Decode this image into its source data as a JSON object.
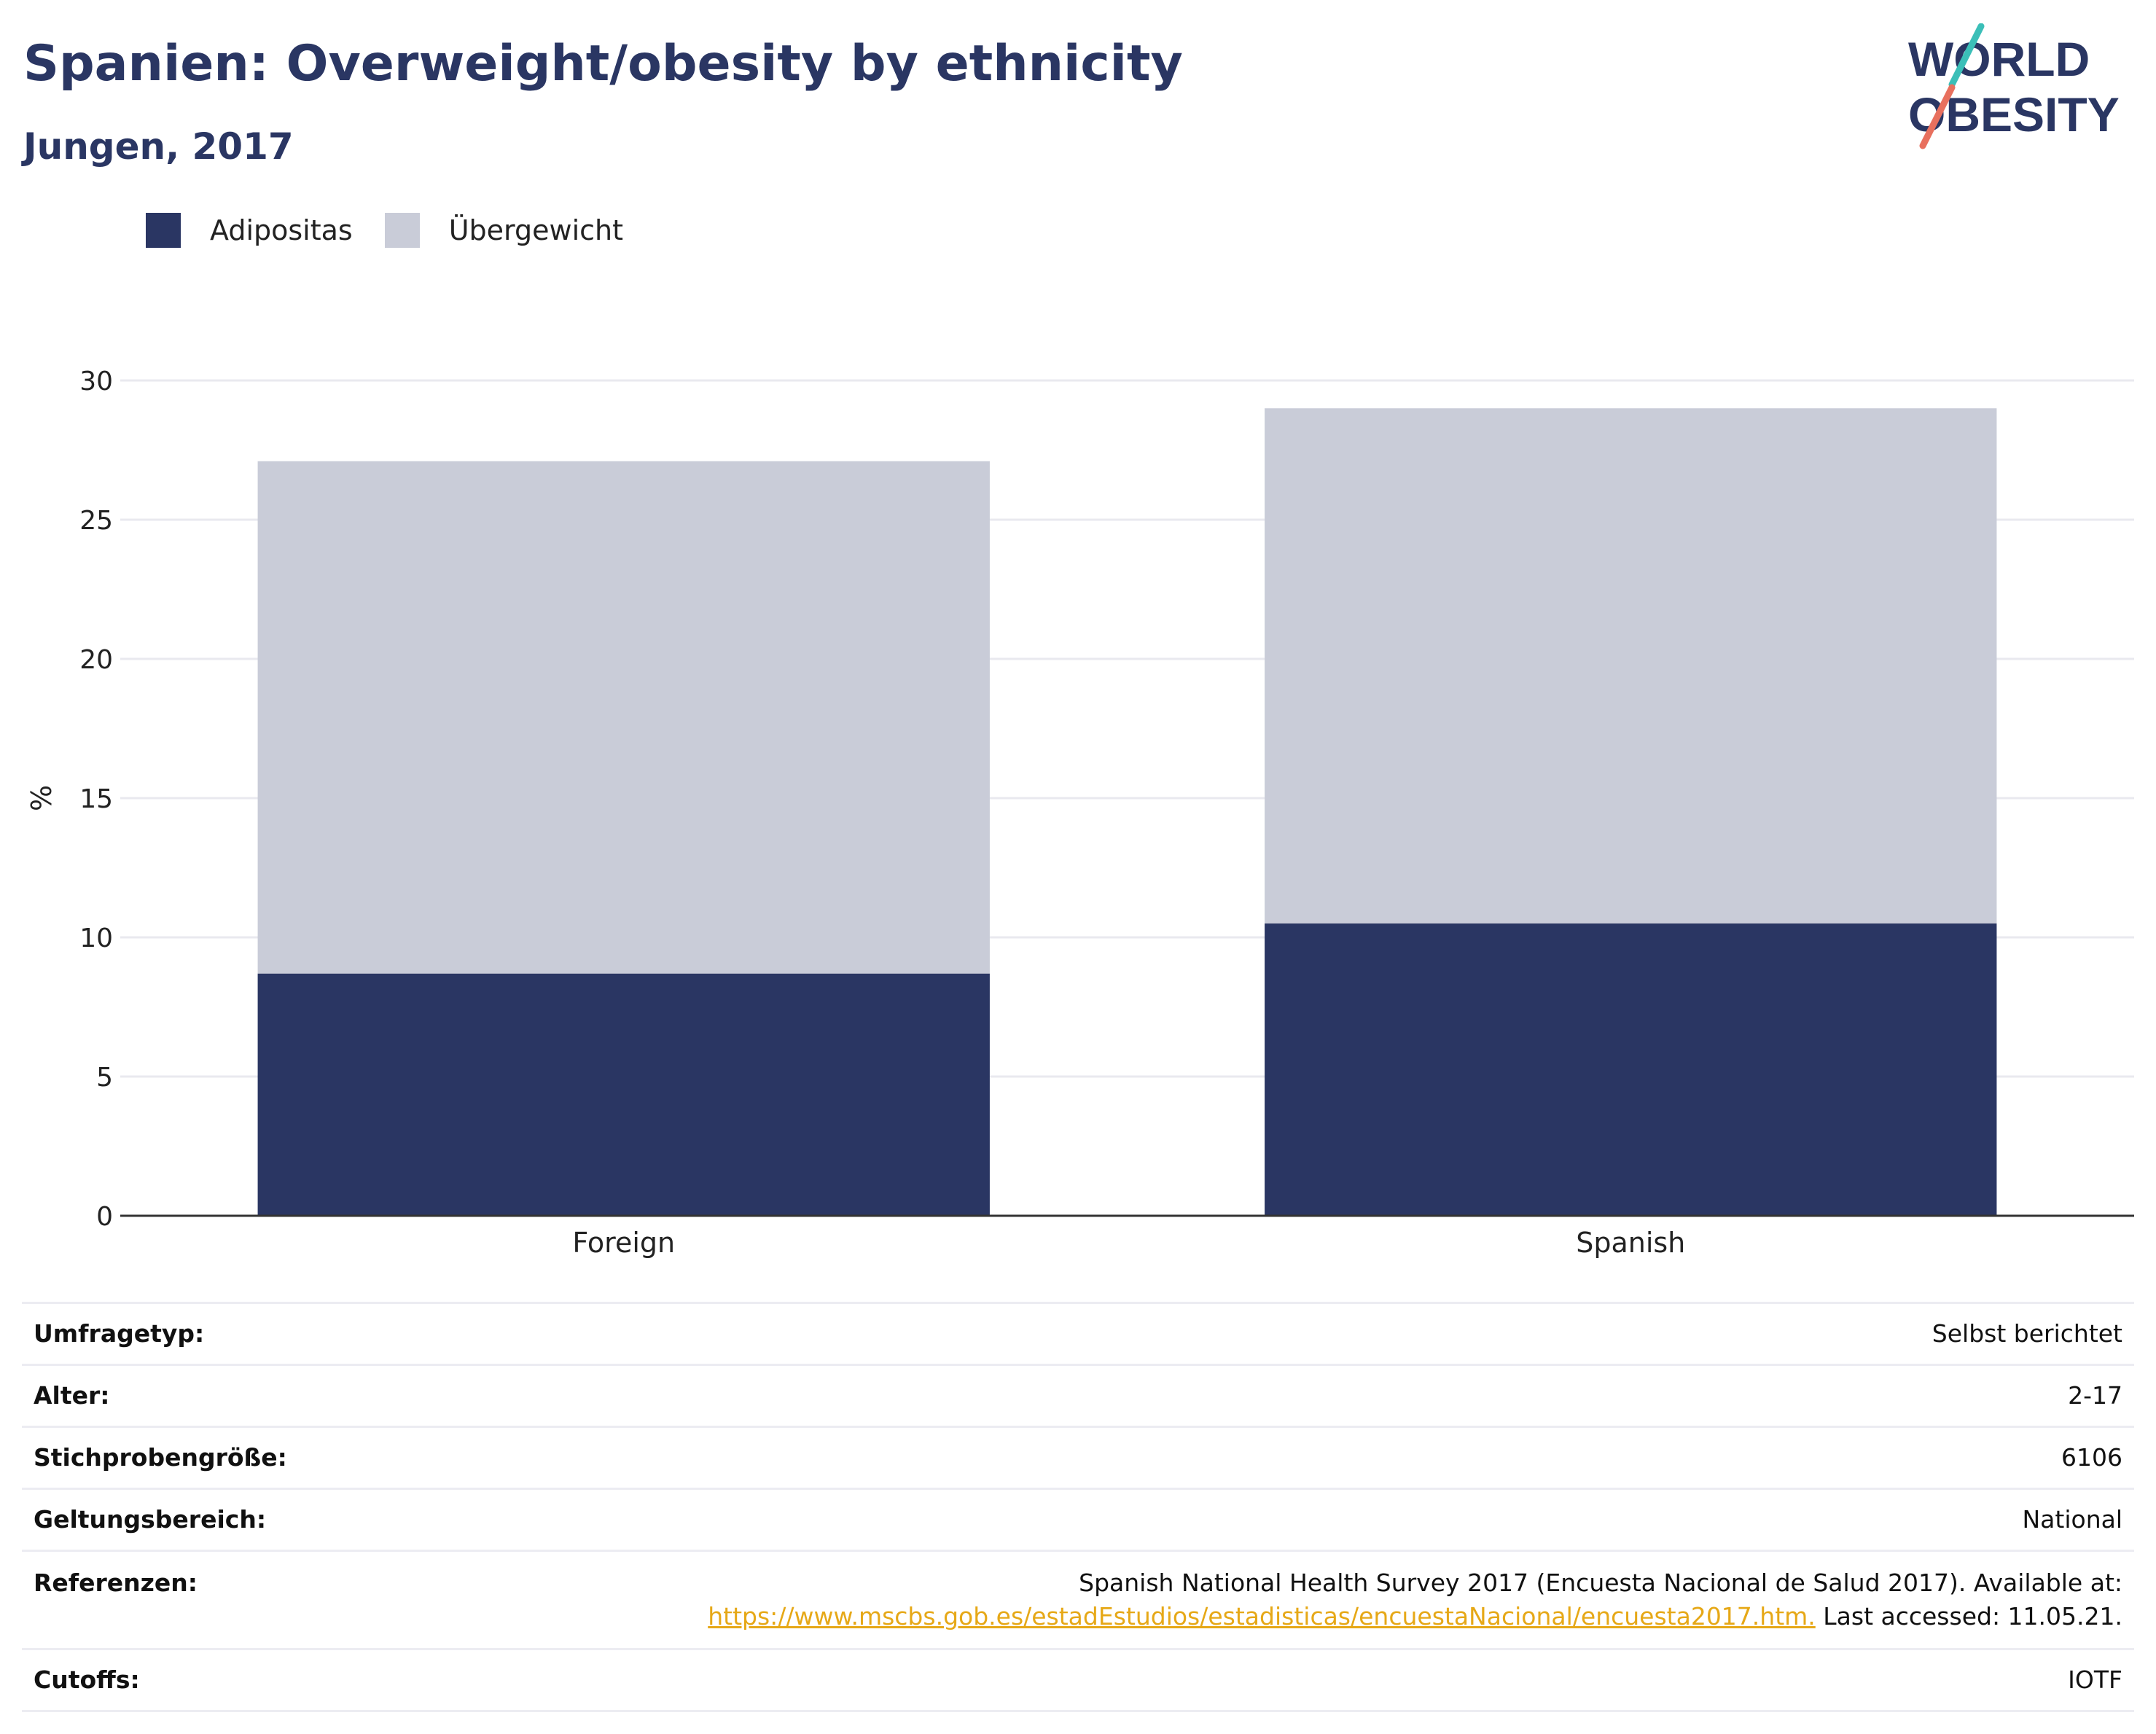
{
  "header": {
    "title": "Spanien: Overweight/obesity by ethnicity",
    "subtitle": "Jungen, 2017"
  },
  "logo": {
    "line1": "WORLD",
    "line2": "OBESITY"
  },
  "colors": {
    "obesity": "#2a3663",
    "overweight": "#c9ccd8",
    "title": "#2a3663",
    "link": "#e6a817"
  },
  "legend": {
    "items": [
      "Adipositas",
      "Übergewicht"
    ]
  },
  "chart_data": {
    "type": "bar",
    "stacked": true,
    "categories": [
      "Foreign",
      "Spanish"
    ],
    "series": [
      {
        "name": "Adipositas",
        "values": [
          8.7,
          10.5
        ]
      },
      {
        "name": "Übergewicht",
        "values": [
          18.4,
          18.5
        ]
      }
    ],
    "ylabel": "%",
    "ylim": [
      0,
      30
    ],
    "yticks": [
      0,
      5,
      10,
      15,
      20,
      25,
      30
    ],
    "grid": true,
    "legend_position": "top-left"
  },
  "info": {
    "survey_type": {
      "label": "Umfragetyp:",
      "value": "Selbst berichtet"
    },
    "age": {
      "label": "Alter:",
      "value": "2-17"
    },
    "sample_size": {
      "label": "Stichprobengröße:",
      "value": "6106"
    },
    "scope": {
      "label": "Geltungsbereich:",
      "value": "National"
    },
    "references": {
      "label": "Referenzen:",
      "text": "Spanish National Health Survey 2017 (Encuesta Nacional de Salud 2017). Available at:",
      "link": "https://www.mscbs.gob.es/estadEstudios/estadisticas/encuestaNacional/encuesta2017.htm.",
      "suffix": " Last accessed: 11.05.21."
    },
    "cutoffs": {
      "label": "Cutoffs:",
      "value": "IOTF"
    }
  }
}
